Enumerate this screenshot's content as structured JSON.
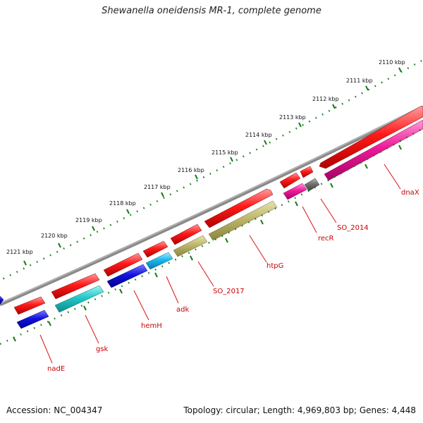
{
  "title": "Shewanella oneidensis MR-1, complete genome",
  "footer": {
    "accession": "Accession: NC_004347",
    "summary": "Topology: circular; Length: 4,969,803 bp; Genes: 4,448"
  },
  "colors": {
    "backbone": "#7a7a7a",
    "tick_track": "#1a7a1a",
    "label_line": "#dd1111",
    "label_text": "#cc0000"
  },
  "tick_labels": [
    "2110 kbp",
    "2111 kbp",
    "2112 kbp",
    "2113 kbp",
    "2114 kbp",
    "2115 kbp",
    "2116 kbp",
    "2117 kbp",
    "2118 kbp",
    "2119 kbp",
    "2120 kbp",
    "2121 kbp"
  ],
  "gene_labels": [
    "dnaX",
    "SO_2014",
    "recR",
    "htpG",
    "SO_2017",
    "adk",
    "hemH",
    "gsk",
    "nadE"
  ]
}
